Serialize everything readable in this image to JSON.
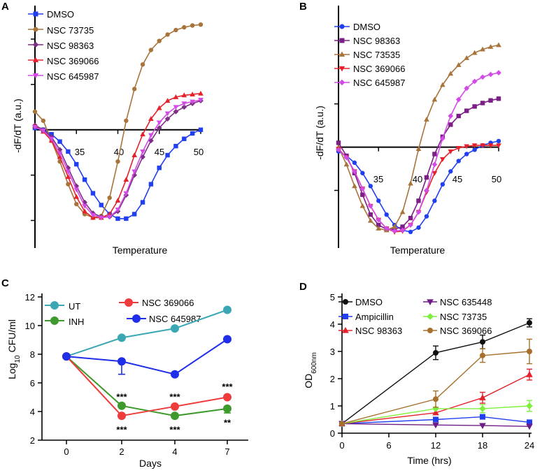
{
  "panels": {
    "A": "A",
    "B": "B",
    "C": "C",
    "D": "D"
  },
  "colors": {
    "blue": "#1f3ff0",
    "brown": "#a8743a",
    "purple": "#7d2e86",
    "red": "#e5222b",
    "magenta": "#d24be6",
    "dark_purple": "#7b1f86",
    "teal": "#3aa7b3",
    "green": "#3f9a2d",
    "blue_c": "#1f2ee8",
    "red_c": "#ee3b3b",
    "black": "#111111",
    "light_green": "#7ef03c",
    "brown_d": "#a6702c",
    "purple_d": "#6f1d86"
  },
  "chart_data": [
    {
      "panel": "A",
      "type": "line",
      "ylabel": "-dF/dT (a.u.)",
      "xlabel": "Temperature",
      "x_ticks": [
        "35",
        "40",
        "45",
        "50"
      ],
      "xlim": [
        30,
        50
      ],
      "ylim": [
        -1.15,
        1.2
      ],
      "series": [
        {
          "name": "DMSO",
          "marker": "square",
          "color": "#1f3ff0",
          "x": [
            30,
            31,
            32,
            33,
            34,
            35,
            36,
            37,
            38,
            39,
            40,
            41,
            42,
            43,
            44,
            45,
            46,
            47,
            48,
            49,
            50
          ],
          "y": [
            0.02,
            0.0,
            -0.05,
            -0.13,
            -0.24,
            -0.38,
            -0.55,
            -0.7,
            -0.83,
            -0.93,
            -0.98,
            -0.98,
            -0.93,
            -0.8,
            -0.6,
            -0.42,
            -0.28,
            -0.18,
            -0.1,
            -0.04,
            0.0
          ]
        },
        {
          "name": "NSC 73735",
          "marker": "circle",
          "color": "#a8743a",
          "x": [
            30,
            31,
            32,
            33,
            34,
            35,
            36,
            37,
            38,
            39,
            40,
            41,
            42,
            43,
            44,
            45,
            46,
            47,
            48,
            49,
            50
          ],
          "y": [
            0.2,
            0.1,
            -0.12,
            -0.35,
            -0.6,
            -0.82,
            -0.93,
            -0.97,
            -0.95,
            -0.75,
            -0.35,
            0.1,
            0.45,
            0.72,
            0.88,
            0.98,
            1.05,
            1.1,
            1.13,
            1.15,
            1.16
          ]
        },
        {
          "name": "NSC 98363",
          "marker": "diamond",
          "color": "#7d2e86",
          "x": [
            30,
            31,
            32,
            33,
            34,
            35,
            36,
            37,
            38,
            39,
            40,
            41,
            42,
            43,
            44,
            45,
            46,
            47,
            48,
            49,
            50
          ],
          "y": [
            0.05,
            0.0,
            -0.08,
            -0.22,
            -0.42,
            -0.62,
            -0.8,
            -0.92,
            -0.96,
            -0.96,
            -0.9,
            -0.72,
            -0.5,
            -0.3,
            -0.12,
            0.02,
            0.12,
            0.2,
            0.25,
            0.29,
            0.32
          ]
        },
        {
          "name": "NSC 369066",
          "marker": "triangle-up",
          "color": "#e5222b",
          "x": [
            30,
            31,
            32,
            33,
            34,
            35,
            36,
            37,
            38,
            39,
            40,
            41,
            42,
            43,
            44,
            45,
            46,
            47,
            48,
            49,
            50
          ],
          "y": [
            0.04,
            -0.02,
            -0.12,
            -0.3,
            -0.52,
            -0.74,
            -0.9,
            -0.97,
            -0.97,
            -0.93,
            -0.78,
            -0.55,
            -0.28,
            -0.05,
            0.12,
            0.24,
            0.32,
            0.36,
            0.38,
            0.39,
            0.4
          ]
        },
        {
          "name": "NSC 645987",
          "marker": "triangle-down",
          "color": "#d24be6",
          "x": [
            30,
            31,
            32,
            33,
            34,
            35,
            36,
            37,
            38,
            39,
            40,
            41,
            42,
            43,
            44,
            45,
            46,
            47,
            48,
            49,
            50
          ],
          "y": [
            0.03,
            -0.01,
            -0.1,
            -0.26,
            -0.46,
            -0.66,
            -0.84,
            -0.94,
            -0.97,
            -0.96,
            -0.88,
            -0.7,
            -0.46,
            -0.24,
            -0.06,
            0.08,
            0.18,
            0.25,
            0.29,
            0.31,
            0.33
          ]
        }
      ]
    },
    {
      "panel": "B",
      "type": "line",
      "ylabel": "-dF/dT (a.u.)",
      "xlabel": "Temperature",
      "x_ticks": [
        "35",
        "40",
        "45",
        "50"
      ],
      "xlim": [
        30,
        50
      ],
      "ylim": [
        -1.15,
        1.2
      ],
      "series": [
        {
          "name": "DMSO",
          "marker": "circle",
          "color": "#1f3ff0",
          "x": [
            30,
            31,
            32,
            33,
            34,
            35,
            36,
            37,
            38,
            39,
            40,
            41,
            42,
            43,
            44,
            45,
            46,
            47,
            48,
            49,
            50
          ],
          "y": [
            -0.05,
            -0.1,
            -0.18,
            -0.3,
            -0.45,
            -0.62,
            -0.78,
            -0.9,
            -0.96,
            -0.98,
            -0.93,
            -0.8,
            -0.62,
            -0.43,
            -0.28,
            -0.16,
            -0.08,
            -0.03,
            0.02,
            0.05,
            0.07
          ]
        },
        {
          "name": "NSC 98363",
          "marker": "square",
          "color": "#7b1f86",
          "x": [
            30,
            31,
            32,
            33,
            34,
            35,
            36,
            37,
            38,
            39,
            40,
            41,
            42,
            43,
            44,
            45,
            46,
            47,
            48,
            49,
            50
          ],
          "y": [
            0.05,
            -0.1,
            -0.3,
            -0.55,
            -0.78,
            -0.9,
            -0.95,
            -0.95,
            -0.92,
            -0.82,
            -0.62,
            -0.35,
            -0.08,
            0.12,
            0.26,
            0.36,
            0.42,
            0.47,
            0.51,
            0.54,
            0.56
          ]
        },
        {
          "name": "NSC 73535",
          "marker": "triangle-up",
          "color": "#a8743a",
          "x": [
            30,
            31,
            32,
            33,
            34,
            35,
            36,
            37,
            38,
            39,
            40,
            41,
            42,
            43,
            44,
            45,
            46,
            47,
            48,
            49,
            50
          ],
          "y": [
            0.0,
            -0.2,
            -0.45,
            -0.68,
            -0.85,
            -0.94,
            -0.96,
            -0.92,
            -0.75,
            -0.42,
            -0.02,
            0.32,
            0.55,
            0.72,
            0.85,
            0.95,
            1.03,
            1.09,
            1.13,
            1.16,
            1.18
          ]
        },
        {
          "name": "NSC 369066",
          "marker": "triangle-down",
          "color": "#e5222b",
          "x": [
            30,
            31,
            32,
            33,
            34,
            35,
            36,
            37,
            38,
            39,
            40,
            41,
            42,
            43,
            44,
            45,
            46,
            47,
            48,
            49,
            50
          ],
          "y": [
            -0.02,
            -0.12,
            -0.28,
            -0.48,
            -0.68,
            -0.84,
            -0.94,
            -0.98,
            -0.97,
            -0.9,
            -0.75,
            -0.52,
            -0.3,
            -0.14,
            -0.05,
            -0.01,
            0.01,
            0.02,
            0.02,
            0.02,
            0.02
          ]
        },
        {
          "name": "NSC 645987",
          "marker": "diamond",
          "color": "#d24be6",
          "x": [
            30,
            31,
            32,
            33,
            34,
            35,
            36,
            37,
            38,
            39,
            40,
            41,
            42,
            43,
            44,
            45,
            46,
            47,
            48,
            49,
            50
          ],
          "y": [
            -0.03,
            -0.12,
            -0.28,
            -0.48,
            -0.68,
            -0.84,
            -0.94,
            -0.97,
            -0.96,
            -0.9,
            -0.75,
            -0.5,
            -0.2,
            0.1,
            0.36,
            0.55,
            0.68,
            0.76,
            0.81,
            0.84,
            0.86
          ]
        }
      ]
    },
    {
      "panel": "C",
      "type": "line",
      "ylabel": "Log10 CFU/ml",
      "ylabel_base": "Log",
      "ylabel_sub": "10",
      "ylabel_rest": " CFU/ml",
      "xlabel": "Days",
      "x_ticks": [
        "0",
        "2",
        "4",
        "7"
      ],
      "x_categories": [
        0,
        2,
        4,
        7
      ],
      "y_ticks": [
        "2",
        "4",
        "6",
        "8",
        "10",
        "12"
      ],
      "ylim": [
        2,
        12
      ],
      "series": [
        {
          "name": "UT",
          "color": "#3aa7b3",
          "x": [
            0,
            2,
            4,
            7
          ],
          "y": [
            7.85,
            9.15,
            9.8,
            11.1
          ],
          "err": [
            0,
            0,
            0,
            0
          ]
        },
        {
          "name": "INH",
          "color": "#3f9a2d",
          "x": [
            0,
            2,
            4,
            7
          ],
          "y": [
            7.85,
            4.4,
            3.7,
            4.2
          ],
          "err": [
            0,
            0,
            0,
            0.3
          ]
        },
        {
          "name": "NSC 369066",
          "color": "#ee3b3b",
          "x": [
            0,
            2,
            4,
            7
          ],
          "y": [
            7.85,
            3.7,
            4.35,
            5.0
          ],
          "err": [
            0,
            0,
            0,
            0
          ]
        },
        {
          "name": "NSC 645987",
          "color": "#1f2ee8",
          "x": [
            0,
            2,
            4,
            7
          ],
          "y": [
            7.85,
            7.5,
            6.6,
            9.05
          ],
          "err": [
            0,
            0.9,
            0,
            0
          ]
        }
      ],
      "annotations": [
        {
          "text": "***",
          "x": 2,
          "y": 5.1
        },
        {
          "text": "***",
          "x": 2,
          "y": 2.8
        },
        {
          "text": "***",
          "x": 4,
          "y": 5.1
        },
        {
          "text": "***",
          "x": 4,
          "y": 2.8
        },
        {
          "text": "***",
          "x": 7,
          "y": 5.8
        },
        {
          "text": "**",
          "x": 7,
          "y": 3.3
        }
      ]
    },
    {
      "panel": "D",
      "type": "line",
      "ylabel": "OD600nm",
      "ylabel_base": "OD",
      "ylabel_sub": "600nm",
      "xlabel": "Time (hrs)",
      "x_ticks": [
        "0",
        "6",
        "12",
        "18",
        "24"
      ],
      "xlim": [
        0,
        24
      ],
      "y_ticks": [
        "0",
        "1",
        "2",
        "3",
        "4",
        "5"
      ],
      "ylim": [
        0,
        5
      ],
      "series": [
        {
          "name": "DMSO",
          "marker": "circle",
          "color": "#111111",
          "x": [
            0,
            12,
            18,
            24
          ],
          "y": [
            0.35,
            2.95,
            3.35,
            4.05
          ],
          "err": [
            0,
            0.25,
            0.25,
            0.15
          ]
        },
        {
          "name": "Ampicillin",
          "marker": "square",
          "color": "#1f3ff0",
          "x": [
            0,
            12,
            18,
            24
          ],
          "y": [
            0.35,
            0.5,
            0.6,
            0.4
          ],
          "err": [
            0,
            0,
            0,
            0
          ]
        },
        {
          "name": "NSC 98363",
          "marker": "triangle-up",
          "color": "#e5222b",
          "x": [
            0,
            12,
            18,
            24
          ],
          "y": [
            0.35,
            0.75,
            1.3,
            2.15
          ],
          "err": [
            0,
            0,
            0.2,
            0.2
          ]
        },
        {
          "name": "NSC 635448",
          "marker": "triangle-down",
          "color": "#6f1d86",
          "x": [
            0,
            12,
            18,
            24
          ],
          "y": [
            0.35,
            0.3,
            0.28,
            0.25
          ],
          "err": [
            0,
            0,
            0,
            0
          ]
        },
        {
          "name": "NSC 73735",
          "marker": "diamond",
          "color": "#7ef03c",
          "x": [
            0,
            12,
            18,
            24
          ],
          "y": [
            0.35,
            0.9,
            0.9,
            1.0
          ],
          "err": [
            0,
            0,
            0.15,
            0.2
          ]
        },
        {
          "name": "NSC 369066",
          "marker": "circle",
          "color": "#a6702c",
          "x": [
            0,
            12,
            18,
            24
          ],
          "y": [
            0.35,
            1.25,
            2.85,
            3.0
          ],
          "err": [
            0,
            0.3,
            0.25,
            0.45
          ]
        }
      ]
    }
  ]
}
